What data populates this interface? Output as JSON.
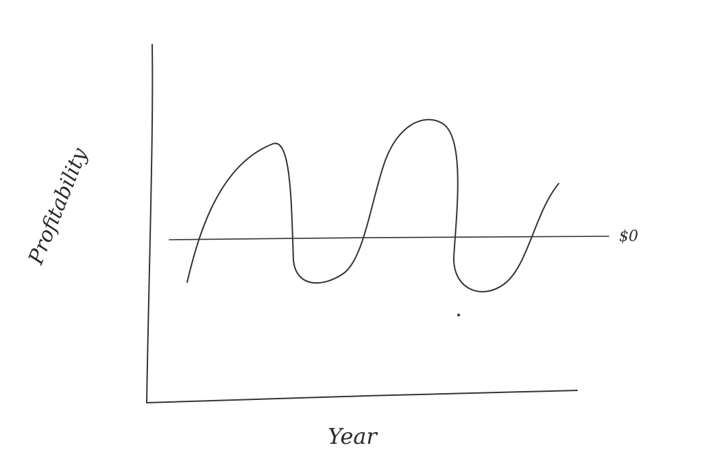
{
  "chart_data": {
    "type": "line",
    "title": "",
    "xlabel": "Year",
    "ylabel": "Profitability",
    "reference_line": {
      "label": "$0"
    },
    "grid": false,
    "legend": "none",
    "ink_color": "#333333",
    "background": "#ffffff"
  }
}
